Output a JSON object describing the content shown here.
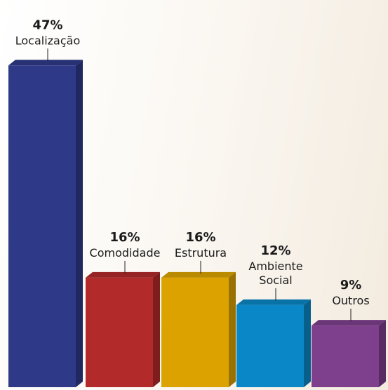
{
  "chart_data": {
    "type": "bar",
    "categories": [
      "Localização",
      "Comodidade",
      "Estrutura",
      "Ambiente Social",
      "Outros"
    ],
    "category_lines": [
      [
        "Localização"
      ],
      [
        "Comodidade"
      ],
      [
        "Estrutura"
      ],
      [
        "Ambiente",
        "Social"
      ],
      [
        "Outros"
      ]
    ],
    "values": [
      47,
      16,
      16,
      12,
      9
    ],
    "value_labels": [
      "47%",
      "16%",
      "16%",
      "12%",
      "9%"
    ],
    "unit": "%",
    "colors": [
      "#2e3a87",
      "#b22a2a",
      "#dba200",
      "#0a87c6",
      "#7e3f8c"
    ],
    "title": "",
    "xlabel": "",
    "ylabel": "",
    "grid": false,
    "legend": "none"
  }
}
